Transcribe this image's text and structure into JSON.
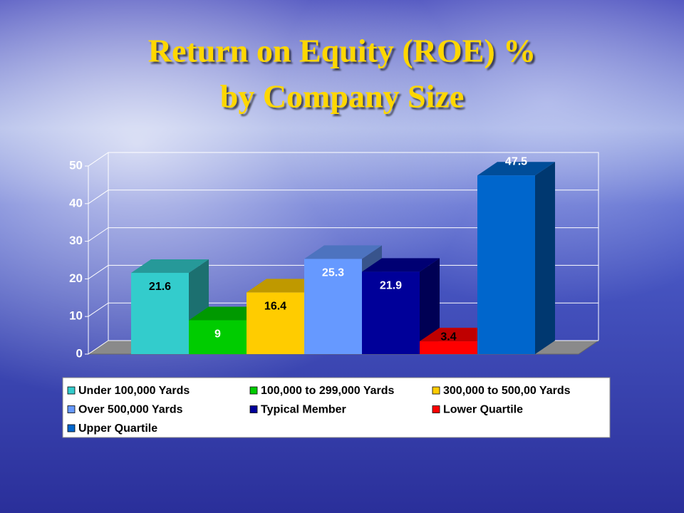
{
  "chart_data": {
    "type": "bar3d",
    "title": [
      "Return on Equity (ROE) %",
      "by Company Size"
    ],
    "ylim": [
      0,
      50
    ],
    "yticks": [
      0,
      10,
      20,
      30,
      40,
      50
    ],
    "grid": true,
    "series": [
      {
        "name": "Under 100,000 Yards",
        "color": "#33CCCC",
        "values": [
          21.6
        ]
      },
      {
        "name": "100,000 to 299,000 Yards",
        "color": "#00CC00",
        "values": [
          9
        ]
      },
      {
        "name": "300,000 to 500,00 Yards",
        "color": "#FFCC00",
        "values": [
          16.4
        ]
      },
      {
        "name": "Over 500,000 Yards",
        "color": "#6699FF",
        "values": [
          25.3
        ]
      },
      {
        "name": "Typical Member",
        "color": "#000099",
        "values": [
          21.9
        ]
      },
      {
        "name": "Lower Quartile",
        "color": "#FF0000",
        "values": [
          3.4
        ]
      },
      {
        "name": "Upper Quartile",
        "color": "#0066CC",
        "values": [
          47.5
        ]
      }
    ]
  }
}
